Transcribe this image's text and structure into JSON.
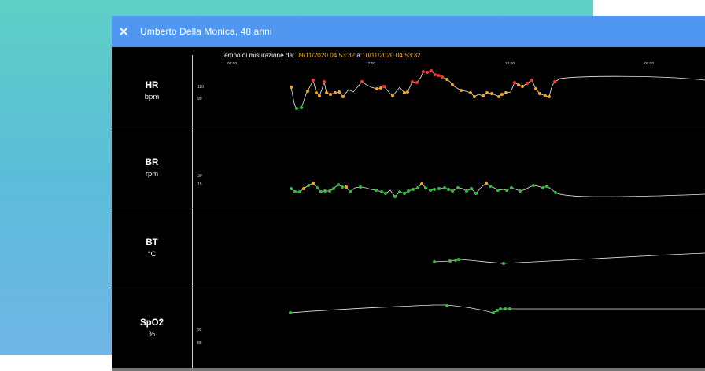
{
  "window": {
    "title": "Umberto Della Monica, 48 anni",
    "close_icon": "close-icon"
  },
  "measurement": {
    "prefix": "Tempo di misurazione da:",
    "from": "09/11/2020 04:53:32",
    "joiner": "a:",
    "to": "10/11/2020 04:53:32"
  },
  "x_ticks": [
    "06:00",
    "12:00",
    "18:00",
    "00:00"
  ],
  "rows": [
    {
      "code": "HR",
      "unit": "bpm",
      "ticks": [
        "110",
        "90"
      ]
    },
    {
      "code": "BR",
      "unit": "rpm",
      "ticks": [
        "30",
        "15"
      ]
    },
    {
      "code": "BT",
      "unit": "°C",
      "ticks": []
    },
    {
      "code": "SpO2",
      "unit": "%",
      "ticks": [
        "92",
        "88"
      ]
    }
  ],
  "colors": {
    "header": "#4f97f0",
    "normal": "#2fbf3a",
    "warning": "#f5a623",
    "alert": "#ff3030",
    "line": "#e8e8e8"
  }
}
